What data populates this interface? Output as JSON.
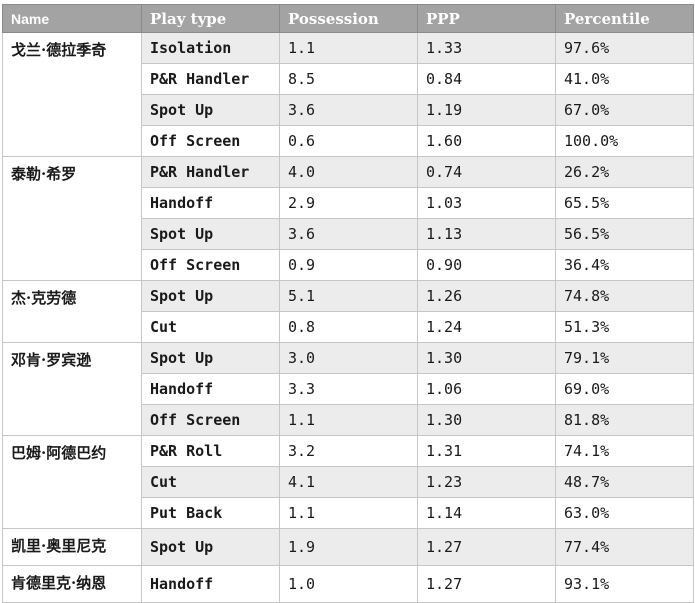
{
  "columns": [
    "Name",
    "Play type",
    "Possession",
    "PPP",
    "Percentile"
  ],
  "rows": [
    {
      "name": "戈兰·德拉季奇",
      "play": "Isolation",
      "poss": "1.1",
      "ppp": "1.33",
      "pct": "97.6%"
    },
    {
      "name": "",
      "play": "P&R Handler",
      "poss": "8.5",
      "ppp": "0.84",
      "pct": "41.0%"
    },
    {
      "name": "",
      "play": "Spot Up",
      "poss": "3.6",
      "ppp": "1.19",
      "pct": "67.0%"
    },
    {
      "name": "",
      "play": "Off Screen",
      "poss": "0.6",
      "ppp": "1.60",
      "pct": "100.0%"
    },
    {
      "name": "泰勒·希罗",
      "play": "P&R Handler",
      "poss": "4.0",
      "ppp": "0.74",
      "pct": "26.2%"
    },
    {
      "name": "",
      "play": "Handoff",
      "poss": "2.9",
      "ppp": "1.03",
      "pct": "65.5%"
    },
    {
      "name": "",
      "play": "Spot Up",
      "poss": "3.6",
      "ppp": "1.13",
      "pct": "56.5%"
    },
    {
      "name": "",
      "play": "Off Screen",
      "poss": "0.9",
      "ppp": "0.90",
      "pct": "36.4%"
    },
    {
      "name": "杰·克劳德",
      "play": "Spot Up",
      "poss": "5.1",
      "ppp": "1.26",
      "pct": "74.8%"
    },
    {
      "name": "",
      "play": "Cut",
      "poss": "0.8",
      "ppp": "1.24",
      "pct": "51.3%"
    },
    {
      "name": "邓肯·罗宾逊",
      "play": "Spot Up",
      "poss": "3.0",
      "ppp": "1.30",
      "pct": "79.1%"
    },
    {
      "name": "",
      "play": "Handoff",
      "poss": "3.3",
      "ppp": "1.06",
      "pct": "69.0%"
    },
    {
      "name": "",
      "play": "Off Screen",
      "poss": "1.1",
      "ppp": "1.30",
      "pct": "81.8%"
    },
    {
      "name": "巴姆·阿德巴约",
      "play": "P&R Roll",
      "poss": "3.2",
      "ppp": "1.31",
      "pct": "74.1%"
    },
    {
      "name": "",
      "play": "Cut",
      "poss": "4.1",
      "ppp": "1.23",
      "pct": "48.7%"
    },
    {
      "name": "",
      "play": "Put Back",
      "poss": "1.1",
      "ppp": "1.14",
      "pct": "63.0%"
    },
    {
      "name": "凯里·奥里尼克",
      "play": "Spot Up",
      "poss": "1.9",
      "ppp": "1.27",
      "pct": "77.4%"
    },
    {
      "name": "肯德里克·纳恩",
      "play": "Handoff",
      "poss": "1.0",
      "ppp": "1.27",
      "pct": "93.1%"
    }
  ]
}
